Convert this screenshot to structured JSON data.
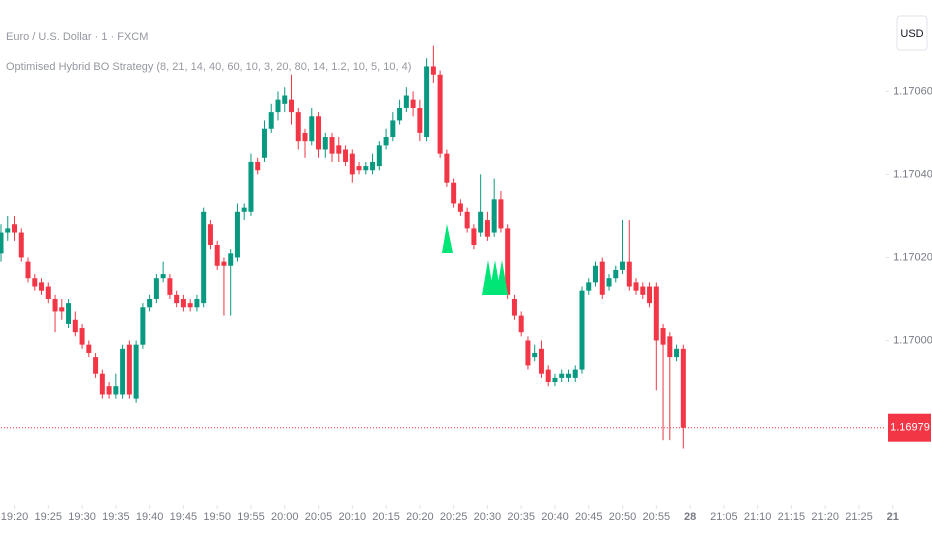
{
  "chart_data": {
    "type": "candlestick",
    "title": "Euro / U.S. Dollar · 1 · FXCM",
    "subtitle": "Optimised Hybrid BO Strategy (8, 21, 14, 40, 60, 10, 3, 20, 80, 14, 1.2, 10, 5, 10, 4)",
    "currency": "USD",
    "up_color": "#089981",
    "down_color": "#f23645",
    "grid": false,
    "x": [
      "19:18",
      "19:19",
      "19:20",
      "19:21",
      "19:22",
      "19:23",
      "19:24",
      "19:25",
      "19:26",
      "19:27",
      "19:28",
      "19:29",
      "19:30",
      "19:31",
      "19:32",
      "19:33",
      "19:34",
      "19:35",
      "19:36",
      "19:37",
      "19:38",
      "19:39",
      "19:40",
      "19:41",
      "19:42",
      "19:43",
      "19:44",
      "19:45",
      "19:46",
      "19:47",
      "19:48",
      "19:49",
      "19:50",
      "19:51",
      "19:52",
      "19:53",
      "19:54",
      "19:55",
      "19:56",
      "19:57",
      "19:58",
      "19:59",
      "20:00",
      "20:01",
      "20:02",
      "20:03",
      "20:04",
      "20:05",
      "20:06",
      "20:07",
      "20:08",
      "20:09",
      "20:10",
      "20:11",
      "20:12",
      "20:13",
      "20:14",
      "20:15",
      "20:16",
      "20:17",
      "20:18",
      "20:19",
      "20:20",
      "20:21",
      "20:22",
      "20:23",
      "20:24",
      "20:25",
      "20:26",
      "20:27",
      "20:28",
      "20:29",
      "20:30",
      "20:31",
      "20:32",
      "20:33",
      "20:34",
      "20:35",
      "20:36",
      "20:37",
      "20:38",
      "20:39",
      "20:40",
      "20:41",
      "20:42",
      "20:43",
      "20:44",
      "20:45",
      "20:46",
      "20:47",
      "20:48",
      "20:49",
      "20:50",
      "20:51",
      "20:52",
      "20:53",
      "20:54",
      "20:55",
      "20:56",
      "20:57",
      "20:58",
      "20:59"
    ],
    "open": [
      1.17021,
      1.17026,
      1.17028,
      1.17026,
      1.17019,
      1.17015,
      1.17014,
      1.17013,
      1.1701,
      1.17008,
      1.17004,
      1.17005,
      1.17003,
      1.16999,
      1.16996,
      1.16992,
      1.16989,
      1.16987,
      1.16987,
      1.16999,
      1.16986,
      1.16999,
      1.17008,
      1.1701,
      1.17015,
      1.17015,
      1.17011,
      1.1701,
      1.17009,
      1.17008,
      1.17009,
      1.17028,
      1.17023,
      1.17019,
      1.17018,
      1.1702,
      1.17031,
      1.17031,
      1.17043,
      1.17044,
      1.17051,
      1.17055,
      1.17057,
      1.17058,
      1.17055,
      1.1705,
      1.17048,
      1.17054,
      1.17046,
      1.17049,
      1.17047,
      1.17046,
      1.17045,
      1.17042,
      1.17041,
      1.17041,
      1.17042,
      1.17047,
      1.17049,
      1.17053,
      1.17056,
      1.17058,
      1.17056,
      1.17049,
      1.17066,
      1.17064,
      1.17045,
      1.17038,
      1.17033,
      1.17031,
      1.17027,
      1.17026,
      1.17029,
      1.17026,
      1.17034,
      1.17027,
      1.1701,
      1.17006,
      1.17,
      1.16996,
      1.16998,
      1.16993,
      1.1699,
      1.16991,
      1.16991,
      1.16991,
      1.16993,
      1.17012,
      1.17014,
      1.17019,
      1.17013,
      1.17015,
      1.17017,
      1.17019,
      1.17014,
      1.17013,
      1.17013,
      1.17013,
      1.17003,
      1.17001,
      1.16996,
      1.16998
    ],
    "high": [
      1.17028,
      1.1703,
      1.1703,
      1.17027,
      1.1702,
      1.17016,
      1.17015,
      1.17014,
      1.17011,
      1.1701,
      1.1701,
      1.17007,
      1.17004,
      1.17,
      1.16997,
      1.16993,
      1.1699,
      1.16992,
      1.16999,
      1.17,
      1.17,
      1.17009,
      1.17011,
      1.17016,
      1.17019,
      1.17016,
      1.17012,
      1.17011,
      1.1701,
      1.17011,
      1.17032,
      1.17029,
      1.17024,
      1.1702,
      1.17022,
      1.17033,
      1.17033,
      1.17045,
      1.17044,
      1.17053,
      1.17057,
      1.1706,
      1.17061,
      1.17064,
      1.17056,
      1.17051,
      1.17056,
      1.17055,
      1.1705,
      1.1705,
      1.17049,
      1.17047,
      1.17046,
      1.17043,
      1.17043,
      1.17045,
      1.17048,
      1.17051,
      1.17055,
      1.17058,
      1.17061,
      1.1706,
      1.17058,
      1.17068,
      1.17071,
      1.17065,
      1.17046,
      1.17039,
      1.17034,
      1.17032,
      1.17028,
      1.1704,
      1.17031,
      1.17039,
      1.17036,
      1.17028,
      1.17011,
      1.17007,
      1.17001,
      1.16999,
      1.17,
      1.16994,
      1.16992,
      1.16993,
      1.16993,
      1.16994,
      1.17013,
      1.17015,
      1.17019,
      1.1702,
      1.17016,
      1.17018,
      1.17029,
      1.17029,
      1.17015,
      1.17014,
      1.17014,
      1.17014,
      1.17004,
      1.17002,
      1.16999,
      1.16999
    ],
    "low": [
      1.17019,
      1.17024,
      1.17024,
      1.17019,
      1.17014,
      1.17012,
      1.17011,
      1.17009,
      1.17002,
      1.17005,
      1.17003,
      1.17001,
      1.16998,
      1.16996,
      1.16991,
      1.16986,
      1.16986,
      1.16986,
      1.16986,
      1.16986,
      1.16985,
      1.16998,
      1.17007,
      1.17009,
      1.17014,
      1.1701,
      1.17008,
      1.17007,
      1.17007,
      1.17007,
      1.17008,
      1.17022,
      1.17017,
      1.17006,
      1.17006,
      1.17019,
      1.17029,
      1.1703,
      1.1704,
      1.17043,
      1.1705,
      1.17053,
      1.17055,
      1.17052,
      1.17046,
      1.17044,
      1.17047,
      1.17044,
      1.17044,
      1.17043,
      1.17043,
      1.17042,
      1.17038,
      1.1704,
      1.1704,
      1.1704,
      1.17041,
      1.17046,
      1.17048,
      1.17052,
      1.17055,
      1.17054,
      1.17048,
      1.17048,
      1.17062,
      1.17044,
      1.17037,
      1.17032,
      1.1703,
      1.17026,
      1.17022,
      1.17025,
      1.17024,
      1.17025,
      1.17026,
      1.1701,
      1.17005,
      1.17001,
      1.16993,
      1.16995,
      1.16991,
      1.16989,
      1.16989,
      1.1699,
      1.1699,
      1.1699,
      1.16992,
      1.17011,
      1.17013,
      1.1701,
      1.17012,
      1.17014,
      1.17016,
      1.17012,
      1.17011,
      1.1701,
      1.17008,
      1.16988,
      1.16976,
      1.16976,
      1.16995,
      1.16974
    ],
    "close": [
      1.17026,
      1.17027,
      1.17026,
      1.1702,
      1.17015,
      1.17013,
      1.17012,
      1.1701,
      1.17007,
      1.17007,
      1.17009,
      1.17002,
      1.16999,
      1.16997,
      1.16992,
      1.16987,
      1.16987,
      1.16989,
      1.16998,
      1.16987,
      1.16999,
      1.17008,
      1.1701,
      1.17015,
      1.17016,
      1.17011,
      1.17009,
      1.17008,
      1.17008,
      1.1701,
      1.17031,
      1.17023,
      1.17018,
      1.17018,
      1.17021,
      1.17031,
      1.17032,
      1.17043,
      1.17041,
      1.17051,
      1.17055,
      1.17058,
      1.17059,
      1.17055,
      1.17048,
      1.17048,
      1.17054,
      1.17046,
      1.17049,
      1.17045,
      1.17045,
      1.17043,
      1.1704,
      1.17041,
      1.17042,
      1.17043,
      1.17047,
      1.17049,
      1.17053,
      1.17056,
      1.17059,
      1.17056,
      1.1705,
      1.17066,
      1.17064,
      1.17045,
      1.17038,
      1.17033,
      1.17031,
      1.17027,
      1.17023,
      1.17031,
      1.17025,
      1.17034,
      1.17027,
      1.17011,
      1.17006,
      1.17002,
      1.16994,
      1.16997,
      1.16992,
      1.1699,
      1.16991,
      1.16992,
      1.16992,
      1.16993,
      1.17012,
      1.17014,
      1.17018,
      1.17011,
      1.17015,
      1.17017,
      1.17019,
      1.17013,
      1.17012,
      1.17011,
      1.17009,
      1.17,
      1.16999,
      1.16996,
      1.16998,
      1.16979
    ],
    "last_price": 1.16979,
    "xlim": [
      "19:18",
      "21:29"
    ],
    "ylim": [
      1.16964,
      1.17082
    ],
    "yticks": [
      {
        "value": 1.17,
        "label": "1.17000"
      },
      {
        "value": 1.1702,
        "label": "1.17020"
      },
      {
        "value": 1.1704,
        "label": "1.17040"
      },
      {
        "value": 1.1706,
        "label": "1.17060"
      }
    ],
    "xticks": [
      "19:20",
      "19:25",
      "19:30",
      "19:35",
      "19:40",
      "19:45",
      "19:50",
      "19:55",
      "20:00",
      "20:05",
      "20:10",
      "20:15",
      "20:20",
      "20:25",
      "20:30",
      "20:35",
      "20:40",
      "20:45",
      "20:50",
      "20:55",
      {
        "value": "21:00",
        "label": "28"
      },
      "21:05",
      "21:10",
      "21:15",
      "21:20",
      "21:25",
      {
        "value": "21:30",
        "label": "21"
      }
    ]
  }
}
